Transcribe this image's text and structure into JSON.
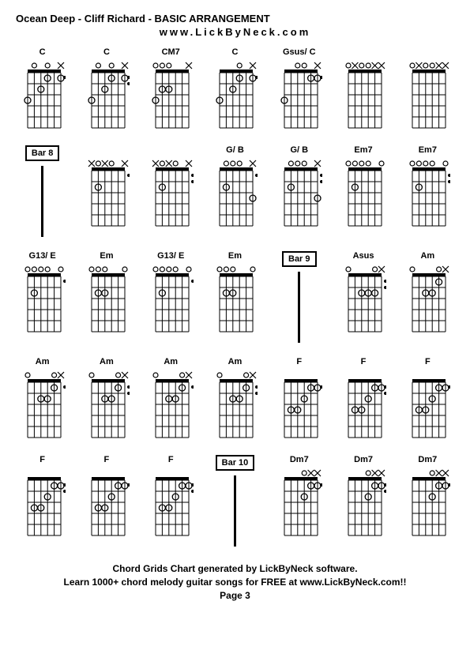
{
  "title": "Ocean Deep - Cliff Richard  - BASIC ARRANGEMENT",
  "website": "www.LickByNeck.com",
  "footer_line1": "Chord Grids Chart generated by LickByNeck software.",
  "footer_line2": "Learn 1000+ chord melody guitar songs for FREE at www.LickByNeck.com!!",
  "page_label": "Page 3",
  "diagram": {
    "strings": 6,
    "frets": 5,
    "width": 42,
    "height": 70,
    "nut_height": 4,
    "dot_radius": 4,
    "mute_size": 4,
    "open_radius": 3,
    "side_dot_radius": 2,
    "line_color": "#000000",
    "bg_color": "#ffffff"
  },
  "rows": [
    {
      "cells": [
        {
          "type": "chord",
          "name": "C",
          "top": [
            "x",
            "",
            "o",
            "",
            "o",
            ""
          ],
          "dots": [
            [
              0,
              1
            ],
            [
              2,
              1
            ],
            [
              3,
              2
            ],
            [
              5,
              3
            ]
          ],
          "side": [
            1
          ]
        },
        {
          "type": "chord",
          "name": "C",
          "top": [
            "x",
            "",
            "o",
            "",
            "o",
            ""
          ],
          "dots": [
            [
              0,
              1
            ],
            [
              2,
              1
            ],
            [
              3,
              2
            ],
            [
              5,
              3
            ]
          ],
          "side": [
            2
          ]
        },
        {
          "type": "chord",
          "name": "CM7",
          "top": [
            "x",
            "",
            "",
            "o",
            "o",
            "o"
          ],
          "dots": [
            [
              3,
              2
            ],
            [
              4,
              2
            ],
            [
              5,
              3
            ]
          ],
          "side": []
        },
        {
          "type": "chord",
          "name": "C",
          "top": [
            "x",
            "",
            "o",
            "",
            "",
            ""
          ],
          "dots": [
            [
              0,
              1
            ],
            [
              2,
              1
            ],
            [
              3,
              2
            ],
            [
              5,
              3
            ]
          ],
          "side": [
            1
          ]
        },
        {
          "type": "chord",
          "name": "Gsus/ C",
          "top": [
            "x",
            "",
            "o",
            "o",
            "",
            ""
          ],
          "dots": [
            [
              0,
              1
            ],
            [
              1,
              1
            ],
            [
              5,
              3
            ]
          ],
          "side": [
            1
          ]
        },
        {
          "type": "chord",
          "name": "",
          "top": [
            "x",
            "x",
            "o",
            "o",
            "x",
            "o"
          ],
          "dots": [],
          "side": []
        },
        {
          "type": "chord",
          "name": "",
          "top": [
            "x",
            "x",
            "o",
            "o",
            "x",
            "o"
          ],
          "dots": [],
          "side": []
        }
      ]
    },
    {
      "cells": [
        {
          "type": "bar",
          "label": "Bar 8"
        },
        {
          "type": "chord",
          "name": "",
          "top": [
            "x",
            "",
            "o",
            "x",
            "o",
            "x"
          ],
          "dots": [
            [
              4,
              2
            ]
          ],
          "side": [
            1
          ]
        },
        {
          "type": "chord",
          "name": "",
          "top": [
            "x",
            "",
            "o",
            "x",
            "o",
            "x"
          ],
          "dots": [
            [
              4,
              2
            ]
          ],
          "side": [
            2
          ]
        },
        {
          "type": "chord",
          "name": "G/ B",
          "top": [
            "x",
            "",
            "o",
            "o",
            "o",
            ""
          ],
          "dots": [
            [
              4,
              2
            ],
            [
              0,
              3
            ]
          ],
          "side": [
            1
          ]
        },
        {
          "type": "chord",
          "name": "G/ B",
          "top": [
            "x",
            "",
            "o",
            "o",
            "o",
            ""
          ],
          "dots": [
            [
              4,
              2
            ],
            [
              0,
              3
            ]
          ],
          "side": [
            2
          ]
        },
        {
          "type": "chord",
          "name": "Em7",
          "top": [
            "o",
            "",
            "o",
            "o",
            "o",
            "o"
          ],
          "dots": [
            [
              4,
              2
            ]
          ],
          "side": []
        },
        {
          "type": "chord",
          "name": "Em7",
          "top": [
            "o",
            "",
            "o",
            "o",
            "o",
            "o"
          ],
          "dots": [
            [
              4,
              2
            ]
          ],
          "side": [
            2
          ]
        }
      ]
    },
    {
      "cells": [
        {
          "type": "chord",
          "name": "G13/ E",
          "top": [
            "o",
            "",
            "o",
            "o",
            "o",
            "o"
          ],
          "dots": [
            [
              4,
              2
            ]
          ],
          "side": [
            1
          ]
        },
        {
          "type": "chord",
          "name": "Em",
          "top": [
            "o",
            "",
            "",
            "o",
            "o",
            "o"
          ],
          "dots": [
            [
              3,
              2
            ],
            [
              4,
              2
            ]
          ],
          "side": []
        },
        {
          "type": "chord",
          "name": "G13/ E",
          "top": [
            "o",
            "",
            "o",
            "o",
            "o",
            "o"
          ],
          "dots": [
            [
              4,
              2
            ]
          ],
          "side": [
            1
          ]
        },
        {
          "type": "chord",
          "name": "Em",
          "top": [
            "o",
            "",
            "",
            "o",
            "o",
            "o"
          ],
          "dots": [
            [
              3,
              2
            ],
            [
              4,
              2
            ]
          ],
          "side": []
        },
        {
          "type": "bar",
          "label": "Bar 9"
        },
        {
          "type": "chord",
          "name": "Asus",
          "top": [
            "x",
            "o",
            "",
            "",
            "",
            "o"
          ],
          "dots": [
            [
              1,
              2
            ],
            [
              2,
              2
            ],
            [
              3,
              2
            ]
          ],
          "side": [
            2
          ]
        },
        {
          "type": "chord",
          "name": "Am",
          "top": [
            "x",
            "o",
            "",
            "",
            "",
            "o"
          ],
          "dots": [
            [
              1,
              1
            ],
            [
              2,
              2
            ],
            [
              3,
              2
            ]
          ],
          "side": []
        }
      ]
    },
    {
      "cells": [
        {
          "type": "chord",
          "name": "Am",
          "top": [
            "x",
            "o",
            "",
            "",
            "",
            "o"
          ],
          "dots": [
            [
              1,
              1
            ],
            [
              2,
              2
            ],
            [
              3,
              2
            ]
          ],
          "side": [
            1
          ]
        },
        {
          "type": "chord",
          "name": "Am",
          "top": [
            "x",
            "o",
            "",
            "",
            "",
            "o"
          ],
          "dots": [
            [
              1,
              1
            ],
            [
              2,
              2
            ],
            [
              3,
              2
            ]
          ],
          "side": [
            2
          ]
        },
        {
          "type": "chord",
          "name": "Am",
          "top": [
            "x",
            "o",
            "",
            "",
            "",
            "o"
          ],
          "dots": [
            [
              1,
              1
            ],
            [
              2,
              2
            ],
            [
              3,
              2
            ]
          ],
          "side": [
            1
          ]
        },
        {
          "type": "chord",
          "name": "Am",
          "top": [
            "x",
            "o",
            "",
            "",
            "",
            "o"
          ],
          "dots": [
            [
              1,
              1
            ],
            [
              2,
              2
            ],
            [
              3,
              2
            ]
          ],
          "side": [
            2
          ]
        },
        {
          "type": "chord",
          "name": "F",
          "top": [
            "",
            "",
            "",
            "",
            "",
            ""
          ],
          "dots": [
            [
              0,
              1
            ],
            [
              1,
              1
            ],
            [
              2,
              2
            ],
            [
              3,
              3
            ],
            [
              4,
              3
            ]
          ],
          "side": [
            1
          ]
        },
        {
          "type": "chord",
          "name": "F",
          "top": [
            "",
            "",
            "",
            "",
            "",
            ""
          ],
          "dots": [
            [
              0,
              1
            ],
            [
              1,
              1
            ],
            [
              2,
              2
            ],
            [
              3,
              3
            ],
            [
              4,
              3
            ]
          ],
          "side": [
            2
          ]
        },
        {
          "type": "chord",
          "name": "F",
          "top": [
            "",
            "",
            "",
            "",
            "",
            ""
          ],
          "dots": [
            [
              0,
              1
            ],
            [
              1,
              1
            ],
            [
              2,
              2
            ],
            [
              3,
              3
            ],
            [
              4,
              3
            ]
          ],
          "side": [
            1
          ]
        }
      ]
    },
    {
      "cells": [
        {
          "type": "chord",
          "name": "F",
          "top": [
            "",
            "",
            "",
            "",
            "",
            ""
          ],
          "dots": [
            [
              0,
              1
            ],
            [
              1,
              1
            ],
            [
              2,
              2
            ],
            [
              3,
              3
            ],
            [
              4,
              3
            ]
          ],
          "side": [
            2
          ]
        },
        {
          "type": "chord",
          "name": "F",
          "top": [
            "",
            "",
            "",
            "",
            "",
            ""
          ],
          "dots": [
            [
              0,
              1
            ],
            [
              1,
              1
            ],
            [
              2,
              2
            ],
            [
              3,
              3
            ],
            [
              4,
              3
            ]
          ],
          "side": [
            1
          ]
        },
        {
          "type": "chord",
          "name": "F",
          "top": [
            "",
            "",
            "",
            "",
            "",
            ""
          ],
          "dots": [
            [
              0,
              1
            ],
            [
              1,
              1
            ],
            [
              2,
              2
            ],
            [
              3,
              3
            ],
            [
              4,
              3
            ]
          ],
          "side": [
            2
          ]
        },
        {
          "type": "bar",
          "label": "Bar 10"
        },
        {
          "type": "chord",
          "name": "Dm7",
          "top": [
            "x",
            "x",
            "o",
            "",
            "",
            ""
          ],
          "dots": [
            [
              0,
              1
            ],
            [
              1,
              1
            ],
            [
              2,
              2
            ]
          ],
          "side": [
            1
          ]
        },
        {
          "type": "chord",
          "name": "Dm7",
          "top": [
            "x",
            "x",
            "o",
            "",
            "",
            ""
          ],
          "dots": [
            [
              0,
              1
            ],
            [
              1,
              1
            ],
            [
              2,
              2
            ]
          ],
          "side": [
            2
          ]
        },
        {
          "type": "chord",
          "name": "Dm7",
          "top": [
            "x",
            "x",
            "o",
            "",
            "",
            ""
          ],
          "dots": [
            [
              0,
              1
            ],
            [
              1,
              1
            ],
            [
              2,
              2
            ]
          ],
          "side": [
            1
          ]
        }
      ]
    }
  ]
}
